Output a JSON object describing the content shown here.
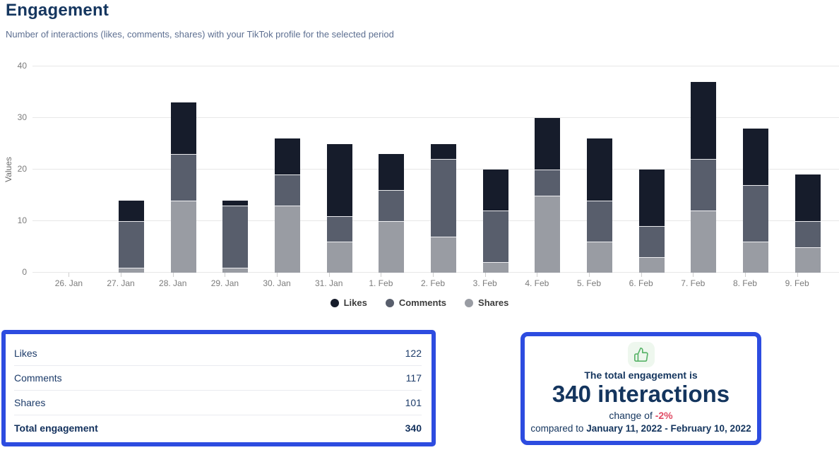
{
  "page": {
    "title": "Engagement",
    "subtitle": "Number of interactions (likes, comments, shares) with your TikTok profile for the selected period"
  },
  "colors": {
    "accent_blue": "#2d4ce0",
    "navy_text": "#15365f",
    "subtitle_gray_blue": "#5d6f91",
    "likes_bar": "#161c2b",
    "comments_bar": "#585e6c",
    "shares_bar": "#999ca3",
    "negative_red": "#e04a63",
    "thumb_green": "#58b368",
    "gridline": "#e7e7e7"
  },
  "chart_data": {
    "type": "bar",
    "stacked": true,
    "stack_order_bottom_to_top": [
      "Shares",
      "Comments",
      "Likes"
    ],
    "title": "Engagement",
    "xlabel": "",
    "ylabel": "Values",
    "ylim": [
      0,
      40
    ],
    "yticks": [
      0,
      10,
      20,
      30,
      40
    ],
    "grid": true,
    "legend_position": "bottom",
    "categories": [
      "26. Jan",
      "27. Jan",
      "28. Jan",
      "29. Jan",
      "30. Jan",
      "31. Jan",
      "1. Feb",
      "2. Feb",
      "3. Feb",
      "4. Feb",
      "5. Feb",
      "6. Feb",
      "7. Feb",
      "8. Feb",
      "9. Feb"
    ],
    "series": [
      {
        "name": "Likes",
        "color": "#161c2b",
        "values": [
          0,
          4,
          10,
          1,
          7,
          14,
          7,
          3,
          8,
          10,
          12,
          11,
          15,
          11,
          9
        ]
      },
      {
        "name": "Comments",
        "color": "#585e6c",
        "values": [
          0,
          9,
          9,
          12,
          6,
          5,
          6,
          15,
          10,
          5,
          8,
          6,
          10,
          11,
          5
        ]
      },
      {
        "name": "Shares",
        "color": "#999ca3",
        "values": [
          0,
          1,
          14,
          1,
          13,
          6,
          10,
          7,
          2,
          15,
          6,
          3,
          12,
          6,
          5
        ]
      }
    ],
    "stack_totals": [
      0,
      14,
      33,
      14,
      26,
      25,
      23,
      25,
      20,
      30,
      26,
      20,
      37,
      28,
      19
    ]
  },
  "summary_table": {
    "rows": [
      {
        "label": "Likes",
        "value": "122"
      },
      {
        "label": "Comments",
        "value": "117"
      },
      {
        "label": "Shares",
        "value": "101"
      }
    ],
    "total_row": {
      "label": "Total engagement",
      "value": "340"
    }
  },
  "summary_card": {
    "icon": "thumbs-up-icon",
    "heading": "The total engagement is",
    "big_value": "340 interactions",
    "change_prefix": "change of ",
    "change_value": "-2%",
    "compare_prefix": "compared to ",
    "compare_range": "January 11, 2022 - February 10, 2022"
  }
}
